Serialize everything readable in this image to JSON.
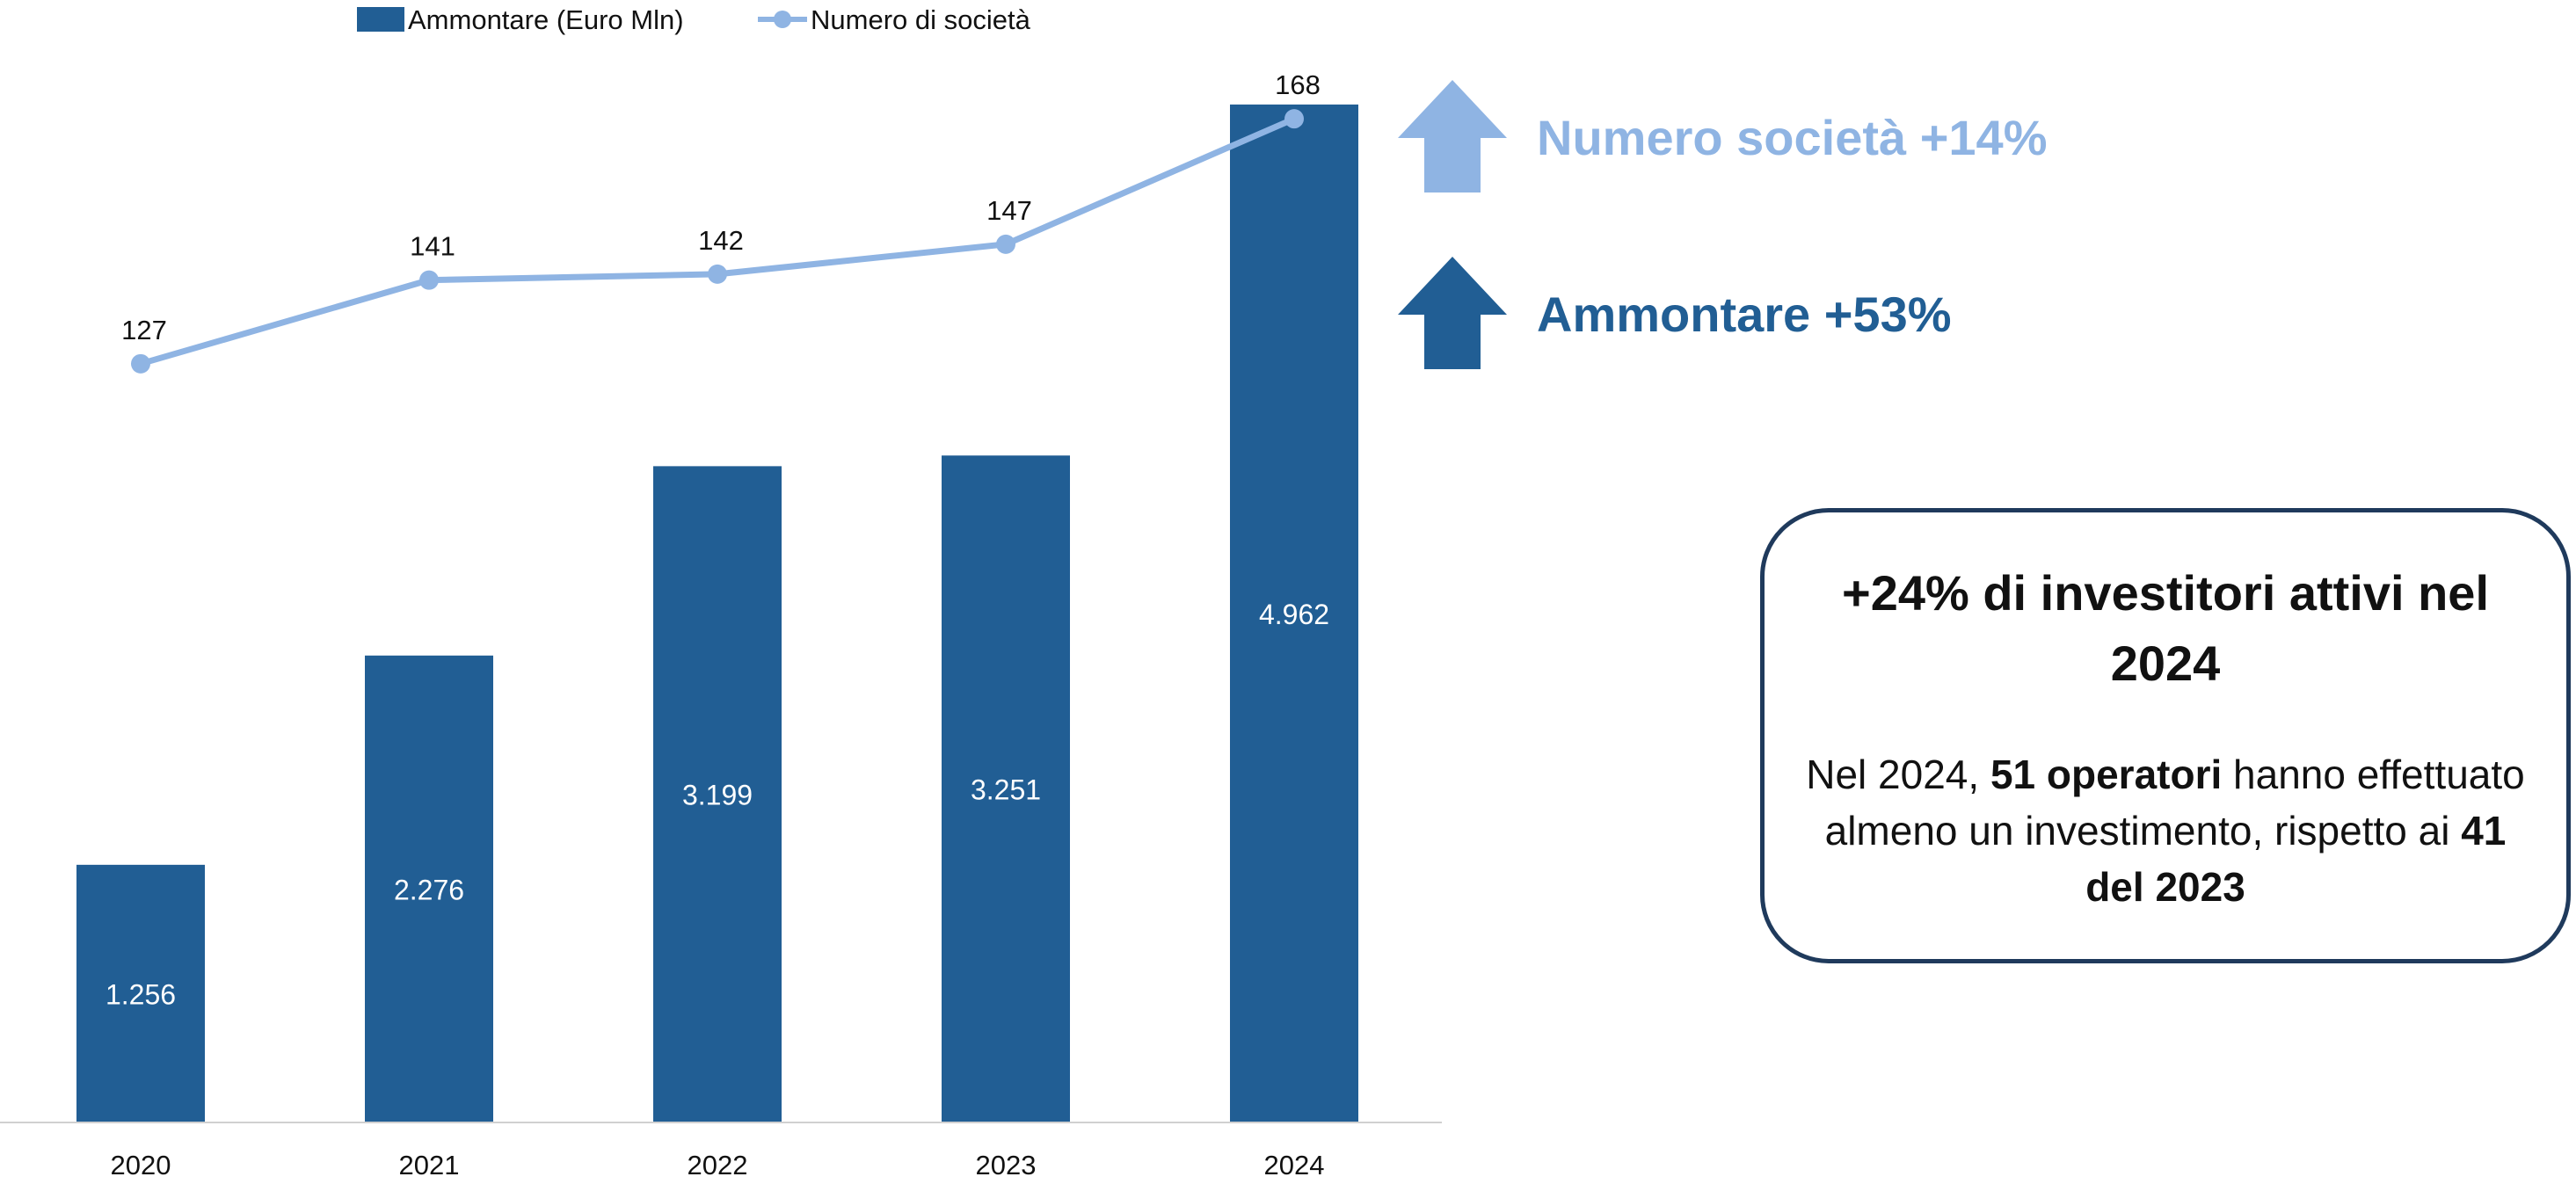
{
  "chart_data": {
    "type": "bar+line",
    "categories": [
      "2020",
      "2021",
      "2022",
      "2023",
      "2024"
    ],
    "series": [
      {
        "name": "Ammontare (Euro Mln)",
        "kind": "bar",
        "color": "#215e94",
        "values": [
          1256,
          2276,
          3199,
          3251,
          4962
        ],
        "labels": [
          "1.256",
          "2.276",
          "3.199",
          "3.251",
          "4.962"
        ]
      },
      {
        "name": "Numero di società",
        "kind": "line",
        "color": "#8fb4e3",
        "values": [
          127,
          141,
          142,
          147,
          168
        ],
        "labels": [
          "127",
          "141",
          "142",
          "147",
          "168"
        ]
      }
    ],
    "bar_ylim": [
      0,
      5300
    ],
    "line_ylim": [
      0,
      182
    ],
    "legend_position": "top",
    "grid": false
  },
  "highlights": [
    {
      "text": "Numero società +14%",
      "color": "#8fb4e3",
      "icon": "arrow-up-icon"
    },
    {
      "text": "Ammontare +53%",
      "color": "#215e94",
      "icon": "arrow-up-icon"
    }
  ],
  "callout": {
    "title": "+24% di investitori attivi nel 2024",
    "body_1": "Nel 2024, ",
    "body_2": "51 operatori",
    "body_3": " hanno effettuato almeno un investimento, rispetto ai ",
    "body_4": "41 del 2023"
  }
}
